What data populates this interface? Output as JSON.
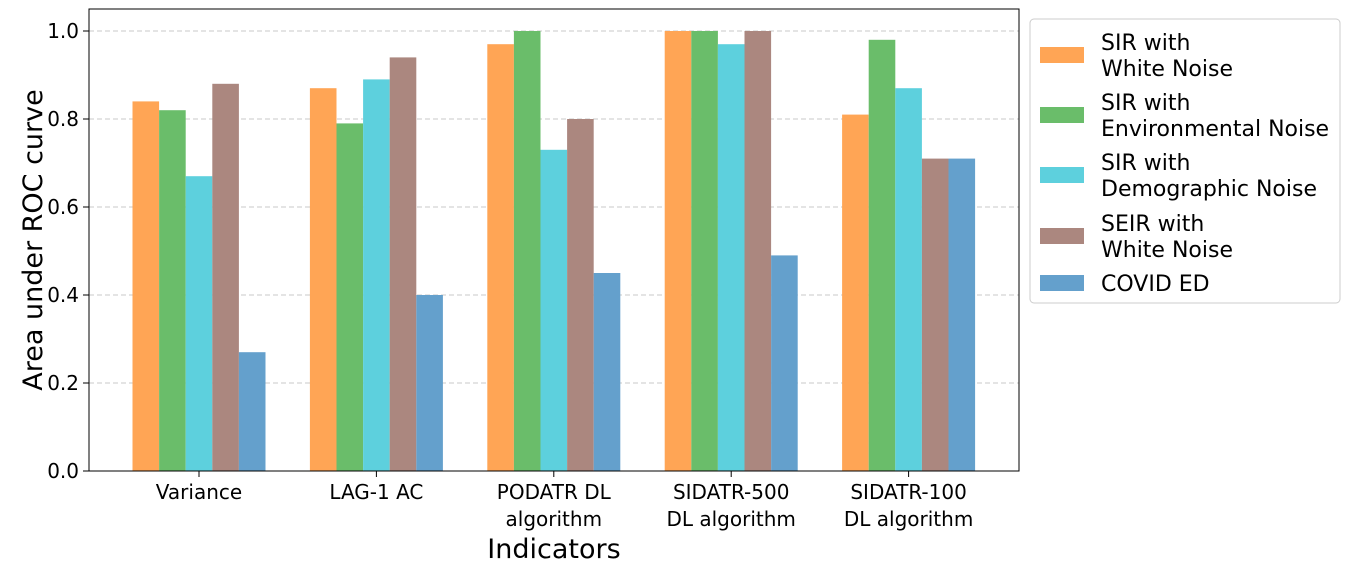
{
  "chart_data": {
    "type": "bar",
    "title": "",
    "xlabel": "Indicators",
    "ylabel": "Area under ROC curve",
    "ylim": [
      0,
      1.05
    ],
    "yticks": [
      0.0,
      0.2,
      0.4,
      0.6,
      0.8,
      1.0
    ],
    "ytick_labels": [
      "0.0",
      "0.2",
      "0.4",
      "0.6",
      "0.8",
      "1.0"
    ],
    "grid": "horizontal dashed",
    "legend_position": "outside-right",
    "categories": [
      [
        "Variance"
      ],
      [
        "LAG-1 AC"
      ],
      [
        "PODATR DL",
        "algorithm"
      ],
      [
        "SIDATR-500",
        "DL algorithm"
      ],
      [
        "SIDATR-100",
        "DL algorithm"
      ]
    ],
    "series": [
      {
        "name": [
          "SIR with",
          "White Noise"
        ],
        "color": "#ffa555",
        "values": [
          0.84,
          0.87,
          0.97,
          1.0,
          0.81
        ]
      },
      {
        "name": [
          "SIR with",
          "Environmental Noise"
        ],
        "color": "#6abd6a",
        "values": [
          0.82,
          0.79,
          1.0,
          1.0,
          0.98
        ]
      },
      {
        "name": [
          "SIR with",
          "Demographic Noise"
        ],
        "color": "#5dd0dd",
        "values": [
          0.67,
          0.89,
          0.73,
          0.97,
          0.87
        ]
      },
      {
        "name": [
          "SEIR with",
          "White Noise"
        ],
        "color": "#ab877f",
        "values": [
          0.88,
          0.94,
          0.8,
          1.0,
          0.71
        ]
      },
      {
        "name": [
          "COVID ED"
        ],
        "color": "#64a0cc",
        "values": [
          0.27,
          0.4,
          0.45,
          0.49,
          0.71
        ]
      }
    ]
  }
}
